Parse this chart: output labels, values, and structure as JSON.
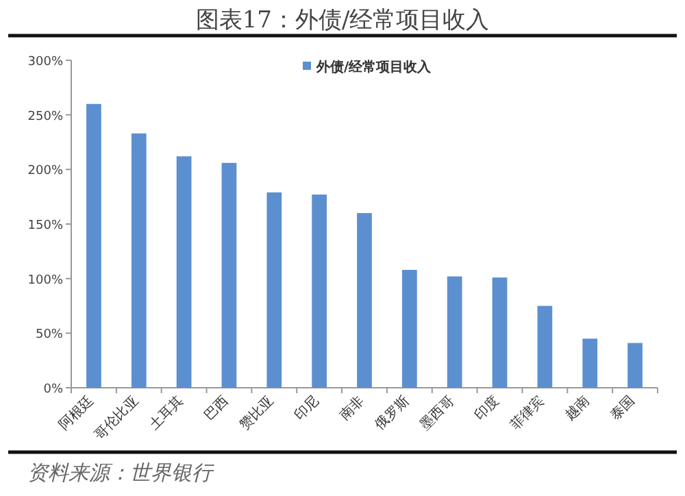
{
  "chart_data": {
    "type": "bar",
    "title": "图表17：外债/经常项目收入",
    "categories": [
      "阿根廷",
      "哥伦比亚",
      "土耳其",
      "巴西",
      "赞比亚",
      "印尼",
      "南非",
      "俄罗斯",
      "墨西哥",
      "印度",
      "菲律宾",
      "越南",
      "泰国"
    ],
    "series": [
      {
        "name": "外债/经常项目收入",
        "color": "#5b8fd0",
        "values": [
          260,
          233,
          212,
          206,
          179,
          177,
          160,
          108,
          102,
          101,
          75,
          45,
          41
        ]
      }
    ],
    "ylim": [
      0,
      300
    ],
    "yticks": [
      {
        "value": 0,
        "label": "0%"
      },
      {
        "value": 50,
        "label": "50%"
      },
      {
        "value": 100,
        "label": "100%"
      },
      {
        "value": 150,
        "label": "150%"
      },
      {
        "value": 200,
        "label": "200%"
      },
      {
        "value": 250,
        "label": "250%"
      },
      {
        "value": 300,
        "label": "300%"
      }
    ],
    "grid": false,
    "legend": "top",
    "annotations": [
      "资料来源：世界银行"
    ]
  }
}
